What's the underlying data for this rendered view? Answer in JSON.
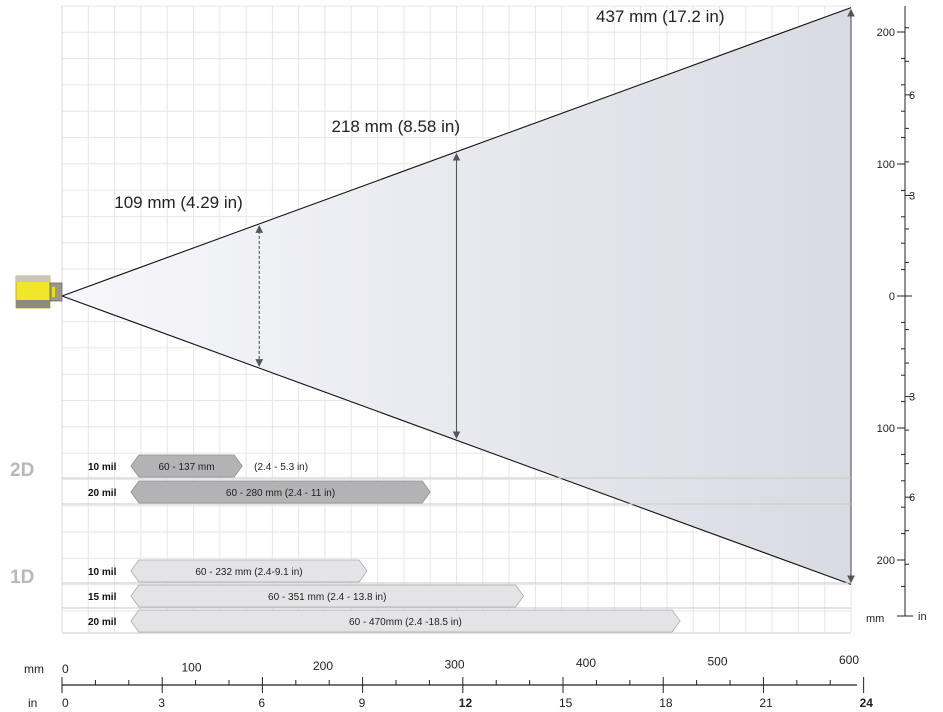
{
  "beam_widths": [
    {
      "distance_mm": 150,
      "label": "109 mm (4.29 in)"
    },
    {
      "distance_mm": 300,
      "label": "218 mm (8.58 in)"
    },
    {
      "distance_mm": 600,
      "label": "437 mm (17.2 in)"
    }
  ],
  "right_axis": {
    "mm_unit": "mm",
    "in_unit": "in",
    "mm_ticks": [
      {
        "value": 200,
        "label": "200"
      },
      {
        "value": 100,
        "label": "100"
      },
      {
        "value": 0,
        "label": "0"
      },
      {
        "value": -100,
        "label": "100"
      },
      {
        "value": -200,
        "label": "200"
      }
    ],
    "in_ticks": [
      {
        "value": 6,
        "label": "6"
      },
      {
        "value": 3,
        "label": "3"
      },
      {
        "value": -3,
        "label": "3"
      },
      {
        "value": -6,
        "label": "6"
      }
    ]
  },
  "bottom_axis": {
    "mm_unit": "mm",
    "in_unit": "in",
    "mm_ticks": [
      "0",
      "100",
      "200",
      "300",
      "400",
      "500",
      "600"
    ],
    "in_ticks": [
      {
        "value": 0,
        "label": "0",
        "bold": false
      },
      {
        "value": 3,
        "label": "3",
        "bold": false
      },
      {
        "value": 6,
        "label": "6",
        "bold": false
      },
      {
        "value": 9,
        "label": "9",
        "bold": false
      },
      {
        "value": 12,
        "label": "12",
        "bold": true
      },
      {
        "value": 15,
        "label": "15",
        "bold": false
      },
      {
        "value": 18,
        "label": "18",
        "bold": false
      },
      {
        "value": 21,
        "label": "21",
        "bold": false
      },
      {
        "value": 24,
        "label": "24",
        "bold": true
      }
    ]
  },
  "sections": [
    {
      "label": "2D",
      "bars": [
        {
          "mil": "10 mil",
          "start_mm": 60,
          "end_mm": 137,
          "text": "60 - 137 mm",
          "outside_text": "(2.4 - 5.3 in)",
          "style": "dark"
        },
        {
          "mil": "20 mil",
          "start_mm": 60,
          "end_mm": 280,
          "text": "60 - 280 mm (2.4 - 11 in)",
          "outside_text": "",
          "style": "dark"
        }
      ]
    },
    {
      "label": "1D",
      "bars": [
        {
          "mil": "10 mil",
          "start_mm": 60,
          "end_mm": 232,
          "text": "60 - 232 mm  (2.4-9.1 in)",
          "outside_text": "",
          "style": "light"
        },
        {
          "mil": "15 mil",
          "start_mm": 60,
          "end_mm": 351,
          "text": "60 - 351 mm (2.4 - 13.8 in)",
          "outside_text": "",
          "style": "light"
        },
        {
          "mil": "20 mil",
          "start_mm": 60,
          "end_mm": 470,
          "text": "60 - 470mm (2.4 -18.5 in)",
          "outside_text": "",
          "style": "light"
        }
      ]
    }
  ],
  "colors": {
    "scanner": "#f2e62a",
    "dark_bar": "#b3b3b5",
    "light_bar": "#e4e4e6",
    "section_label": "#b8b8bb",
    "grid": "#e6e6e6",
    "beam_dark": "#d9dbe3"
  }
}
